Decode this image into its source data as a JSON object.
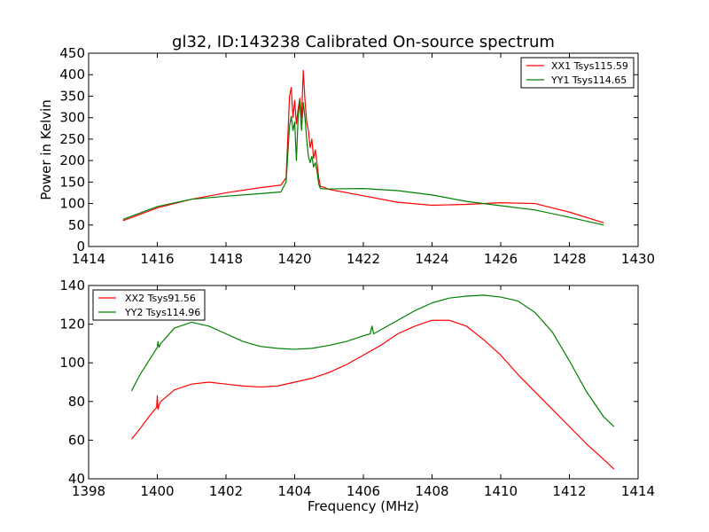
{
  "chart_data": [
    {
      "type": "line",
      "title": "gl32, ID:143238 Calibrated On-source spectrum",
      "xlabel": "",
      "ylabel": "Power in Kelvin",
      "xlim": [
        1414,
        1430
      ],
      "ylim": [
        0,
        450
      ],
      "xticks": [
        "1414",
        "1416",
        "1418",
        "1420",
        "1422",
        "1424",
        "1426",
        "1428",
        "1430"
      ],
      "yticks": [
        "0",
        "50",
        "100",
        "150",
        "200",
        "250",
        "300",
        "350",
        "400",
        "450"
      ],
      "legend_position": "top-right",
      "series": [
        {
          "name": "XX1 Tsys115.59",
          "color": "#ff0000",
          "x": [
            1415.0,
            1416.0,
            1417.0,
            1418.0,
            1419.0,
            1419.6,
            1419.75,
            1419.85,
            1419.9,
            1419.95,
            1420.0,
            1420.05,
            1420.1,
            1420.15,
            1420.2,
            1420.25,
            1420.3,
            1420.35,
            1420.4,
            1420.45,
            1420.5,
            1420.55,
            1420.6,
            1420.65,
            1420.7,
            1420.75,
            1420.85,
            1421.0,
            1422.0,
            1423.0,
            1424.0,
            1425.0,
            1426.0,
            1427.0,
            1428.0,
            1429.0
          ],
          "y": [
            60,
            90,
            110,
            125,
            137,
            143,
            160,
            350,
            370,
            300,
            340,
            285,
            320,
            345,
            300,
            410,
            340,
            290,
            270,
            230,
            250,
            205,
            225,
            195,
            160,
            140,
            138,
            133,
            118,
            103,
            96,
            98,
            102,
            100,
            80,
            55
          ]
        },
        {
          "name": "YY1 Tsys114.65",
          "color": "#008000",
          "x": [
            1415.0,
            1416.0,
            1417.0,
            1418.0,
            1419.0,
            1419.6,
            1419.75,
            1419.85,
            1419.9,
            1419.95,
            1420.0,
            1420.05,
            1420.1,
            1420.15,
            1420.2,
            1420.25,
            1420.3,
            1420.35,
            1420.4,
            1420.45,
            1420.5,
            1420.55,
            1420.6,
            1420.65,
            1420.7,
            1420.75,
            1420.85,
            1421.0,
            1422.0,
            1423.0,
            1424.0,
            1425.0,
            1426.0,
            1427.0,
            1428.0,
            1429.0
          ],
          "y": [
            63,
            93,
            110,
            117,
            123,
            127,
            150,
            280,
            303,
            270,
            290,
            200,
            300,
            340,
            270,
            335,
            300,
            250,
            210,
            195,
            210,
            185,
            195,
            175,
            145,
            135,
            134,
            134,
            135,
            130,
            120,
            105,
            95,
            85,
            68,
            50
          ]
        }
      ]
    },
    {
      "type": "line",
      "title": "",
      "xlabel": "Frequency (MHz)",
      "ylabel": "",
      "xlim": [
        1398,
        1414
      ],
      "ylim": [
        40,
        140
      ],
      "xticks": [
        "1398",
        "1400",
        "1402",
        "1404",
        "1406",
        "1408",
        "1410",
        "1412",
        "1414"
      ],
      "yticks": [
        "40",
        "60",
        "80",
        "100",
        "120",
        "140"
      ],
      "legend_position": "top-left",
      "series": [
        {
          "name": "XX2 Tsys91.56",
          "color": "#ff0000",
          "x": [
            1399.25,
            1399.5,
            1399.75,
            1399.98,
            1400.0,
            1400.02,
            1400.05,
            1400.1,
            1400.5,
            1401.0,
            1401.5,
            1402.0,
            1402.5,
            1403.0,
            1403.5,
            1404.0,
            1404.5,
            1405.0,
            1405.5,
            1406.0,
            1406.5,
            1407.0,
            1407.5,
            1408.0,
            1408.5,
            1409.0,
            1409.5,
            1410.0,
            1410.5,
            1411.0,
            1411.5,
            1412.0,
            1412.5,
            1413.0,
            1413.3
          ],
          "y": [
            60.5,
            66,
            72,
            77,
            83,
            76,
            78,
            80,
            86,
            89,
            90,
            89,
            88,
            87.5,
            88,
            90,
            92,
            95,
            99,
            104,
            109,
            115,
            119,
            122,
            122,
            119,
            112,
            104,
            94,
            85,
            76,
            67,
            58,
            50,
            45
          ]
        },
        {
          "name": "YY2 Tsys114.96",
          "color": "#008000",
          "x": [
            1399.25,
            1399.5,
            1399.75,
            1400.0,
            1400.02,
            1400.05,
            1400.1,
            1400.5,
            1401.0,
            1401.5,
            1402.0,
            1402.5,
            1403.0,
            1403.5,
            1404.0,
            1404.5,
            1405.0,
            1405.5,
            1406.0,
            1406.2,
            1406.25,
            1406.3,
            1406.5,
            1407.0,
            1407.5,
            1408.0,
            1408.5,
            1409.0,
            1409.5,
            1410.0,
            1410.5,
            1411.0,
            1411.5,
            1412.0,
            1412.5,
            1413.0,
            1413.3
          ],
          "y": [
            85.5,
            94,
            101,
            108,
            111,
            108,
            110,
            118,
            121,
            119,
            115,
            111,
            108.5,
            107.5,
            107,
            107.5,
            109,
            111,
            114,
            115,
            119,
            115,
            117,
            122,
            127,
            131,
            133.5,
            134.5,
            135,
            134,
            132,
            126,
            116,
            101,
            85,
            72,
            67
          ]
        }
      ]
    }
  ]
}
